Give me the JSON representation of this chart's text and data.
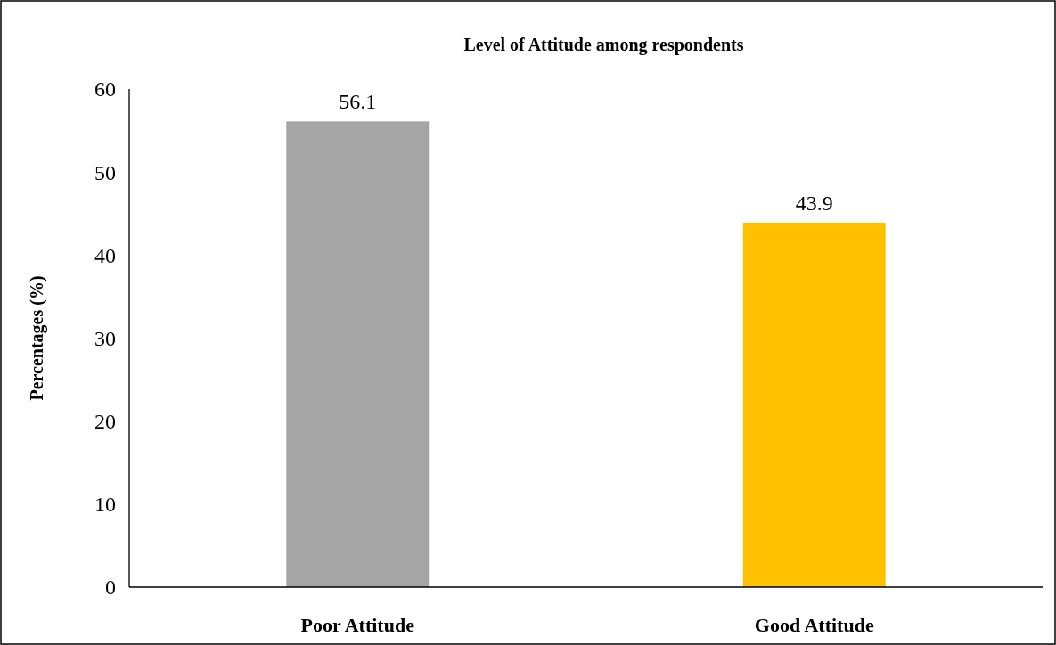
{
  "chart_data": {
    "type": "bar",
    "title": "Level of Attitude among respondents",
    "ylabel": "Percentages (%)",
    "categories": [
      "Poor Attitude",
      "Good Attitude"
    ],
    "values": [
      56.1,
      43.9
    ],
    "colors": [
      "#a5a5a5",
      "#ffc000"
    ],
    "ylim": [
      0,
      60
    ],
    "yticks": [
      0,
      10,
      20,
      30,
      40,
      50,
      60
    ],
    "data_labels": true,
    "grid": false
  }
}
